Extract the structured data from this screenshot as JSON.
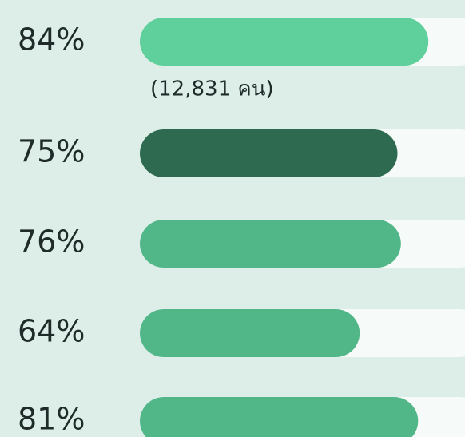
{
  "chart_data": {
    "type": "bar",
    "orientation": "horizontal",
    "categories": [
      null,
      null,
      null,
      null,
      null
    ],
    "values": [
      84,
      75,
      76,
      64,
      81
    ],
    "value_labels": [
      "84%",
      "75%",
      "76%",
      "64%",
      "81%"
    ],
    "colors": [
      "#5fcf9c",
      "#2d6a4f",
      "#52b788",
      "#52b788",
      "#52b788"
    ],
    "xlim": [
      0,
      100
    ],
    "annotations": [
      "(12,831  คน)"
    ]
  }
}
